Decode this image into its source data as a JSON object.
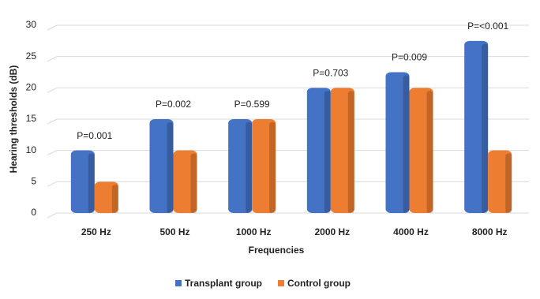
{
  "chart_data": {
    "type": "bar",
    "y_label": "Hearing thresholds (dB)",
    "x_label": "Frequencies",
    "categories": [
      "250 Hz",
      "500 Hz",
      "1000 Hz",
      "2000 Hz",
      "4000 Hz",
      "8000 Hz"
    ],
    "series": [
      {
        "name": "Transplant group",
        "color": "#4472c4",
        "values": [
          10,
          15,
          15,
          20,
          22.5,
          27.5
        ]
      },
      {
        "name": "Control group",
        "color": "#ed7d31",
        "values": [
          5,
          10,
          15,
          20,
          20,
          10
        ]
      }
    ],
    "annotations": [
      "P=0.001",
      "P=0.002",
      "P=0.599",
      "P=0.703",
      "P=0.009",
      "P=<0.001"
    ],
    "ylim": [
      0,
      30
    ],
    "yticks": [
      0,
      5,
      10,
      15,
      20,
      25,
      30
    ],
    "grid": true,
    "legend": "bottom"
  }
}
